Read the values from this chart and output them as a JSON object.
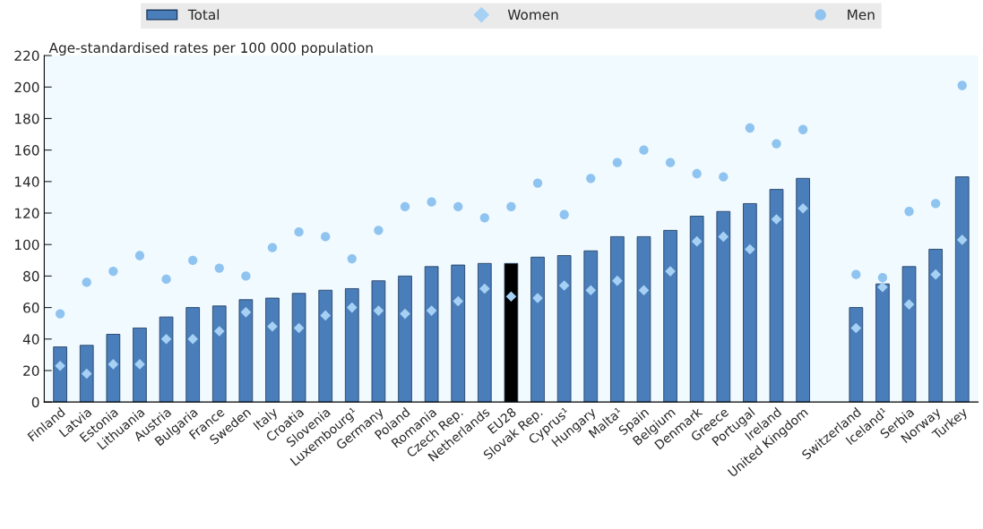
{
  "chart_data": {
    "type": "bar",
    "ylabel": "Age-standardised rates per 100 000 population",
    "categories": [
      "Finland",
      "Latvia",
      "Estonia",
      "Lithuania",
      "Austria",
      "Bulgaria",
      "France",
      "Sweden",
      "Italy",
      "Croatia",
      "Slovenia",
      "Luxembourg¹",
      "Germany",
      "Poland",
      "Romania",
      "Czech Rep.",
      "Netherlands",
      "EU28",
      "Slovak Rep.",
      "Cyprus¹",
      "Hungary",
      "Malta¹",
      "Spain",
      "Belgium",
      "Denmark",
      "Greece",
      "Portugal",
      "Ireland",
      "United Kingdom",
      null,
      "Switzerland",
      "Iceland¹",
      "Serbia",
      "Norway",
      "Turkey"
    ],
    "series": [
      {
        "name": "Total",
        "color": "#4a7ebb",
        "colors": [
          "#4a7ebb",
          "#4a7ebb",
          "#4a7ebb",
          "#4a7ebb",
          "#4a7ebb",
          "#4a7ebb",
          "#4a7ebb",
          "#4a7ebb",
          "#4a7ebb",
          "#4a7ebb",
          "#4a7ebb",
          "#4a7ebb",
          "#4a7ebb",
          "#4a7ebb",
          "#4a7ebb",
          "#4a7ebb",
          "#4a7ebb",
          "#000000",
          "#4a7ebb",
          "#4a7ebb",
          "#4a7ebb",
          "#4a7ebb",
          "#4a7ebb",
          "#4a7ebb",
          "#4a7ebb",
          "#4a7ebb",
          "#4a7ebb",
          "#4a7ebb",
          "#4a7ebb",
          "#4a7ebb",
          "#4a7ebb",
          "#4a7ebb",
          "#4a7ebb",
          "#4a7ebb",
          "#4a7ebb"
        ],
        "values": [
          35,
          36,
          43,
          47,
          54,
          60,
          61,
          65,
          66,
          69,
          71,
          72,
          77,
          80,
          86,
          87,
          88,
          88,
          92,
          93,
          96,
          105,
          105,
          109,
          118,
          121,
          126,
          135,
          142,
          null,
          60,
          75,
          86,
          97,
          143
        ]
      },
      {
        "name": "Women",
        "type": "scatter",
        "marker": "diamond",
        "color": "#a6d1f5",
        "values": [
          23,
          18,
          24,
          24,
          40,
          40,
          45,
          57,
          48,
          47,
          55,
          60,
          58,
          56,
          58,
          64,
          72,
          67,
          66,
          74,
          71,
          77,
          71,
          83,
          102,
          105,
          97,
          116,
          123,
          null,
          47,
          73,
          62,
          81,
          103
        ]
      },
      {
        "name": "Men",
        "type": "scatter",
        "marker": "circle",
        "color": "#8fc3f0",
        "values": [
          56,
          76,
          83,
          93,
          78,
          90,
          85,
          80,
          98,
          108,
          105,
          91,
          109,
          124,
          127,
          124,
          117,
          124,
          139,
          119,
          142,
          152,
          160,
          152,
          145,
          143,
          174,
          164,
          173,
          null,
          81,
          79,
          121,
          126,
          201
        ]
      }
    ],
    "ylim": [
      0,
      220
    ],
    "yticks": [
      0,
      20,
      40,
      60,
      80,
      100,
      120,
      140,
      160,
      180,
      200,
      220
    ],
    "grid": false,
    "legend": "top"
  }
}
